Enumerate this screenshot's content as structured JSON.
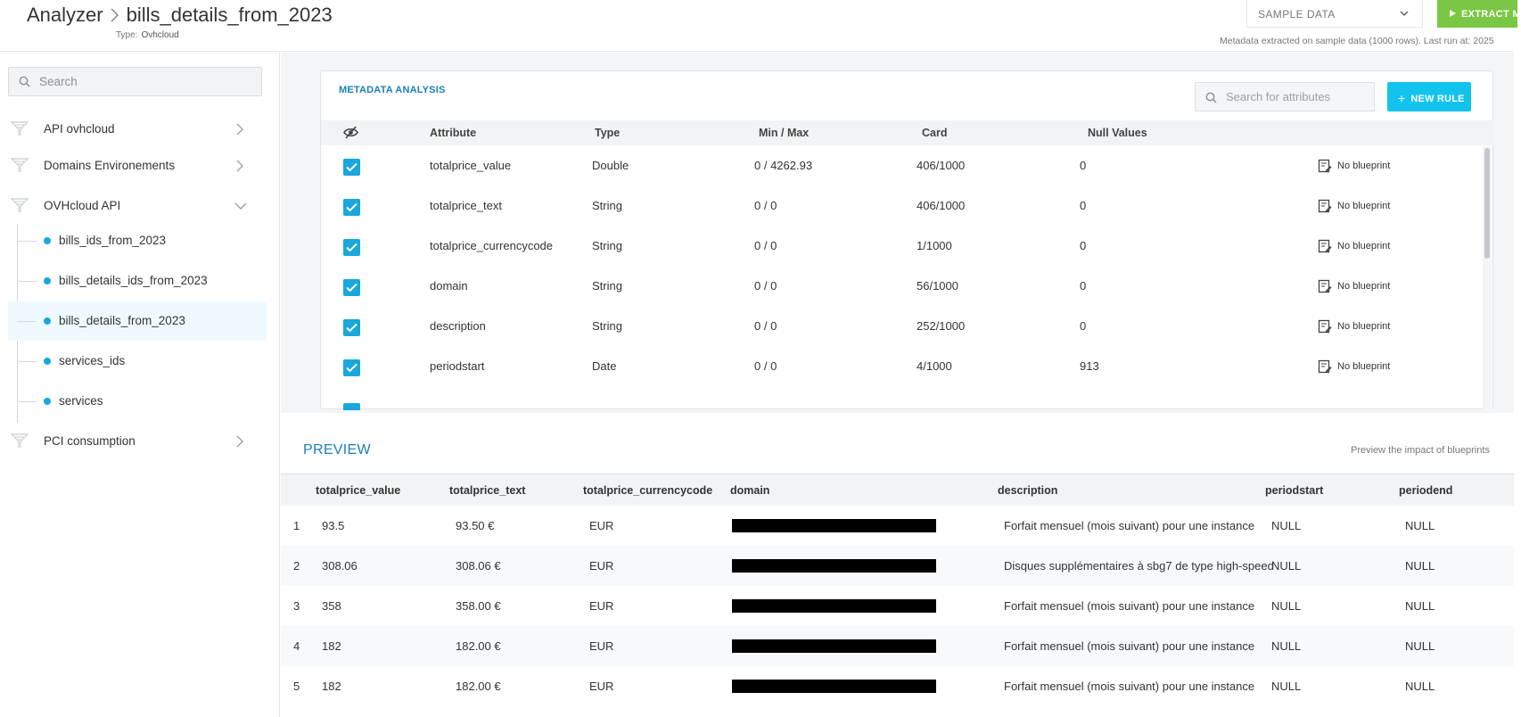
{
  "header": {
    "breadcrumb_root": "Analyzer",
    "breadcrumb_current": "bills_details_from_2023",
    "type_label": "Type:",
    "type_value": "Ovhcloud",
    "sample_select": "SAMPLE DATA",
    "extract_button": "EXTRACT M",
    "meta_info": "Metadata extracted on sample data (1000 rows).  Last run at:  2025"
  },
  "sidebar": {
    "search_placeholder": "Search",
    "groups": [
      {
        "label": "API ovhcloud",
        "expanded": false
      },
      {
        "label": "Domains Environements",
        "expanded": false
      },
      {
        "label": "OVHcloud API",
        "expanded": true
      },
      {
        "label": "PCI consumption",
        "expanded": false
      }
    ],
    "children": [
      {
        "label": "bills_ids_from_2023",
        "active": false
      },
      {
        "label": "bills_details_ids_from_2023",
        "active": false
      },
      {
        "label": "bills_details_from_2023",
        "active": true
      },
      {
        "label": "services_ids",
        "active": false
      },
      {
        "label": "services",
        "active": false
      }
    ]
  },
  "metadata": {
    "title": "METADATA ANALYSIS",
    "search_placeholder": "Search for attributes",
    "new_rule": "NEW RULE",
    "columns": {
      "attribute": "Attribute",
      "type": "Type",
      "minmax": "Min / Max",
      "card": "Card",
      "nulls": "Null Values"
    },
    "rows": [
      {
        "attribute": "totalprice_value",
        "type": "Double",
        "minmax": "0 / 4262.93",
        "card": "406/1000",
        "nulls": "0",
        "blueprint": "No blueprint",
        "checked": true
      },
      {
        "attribute": "totalprice_text",
        "type": "String",
        "minmax": "0 / 0",
        "card": "406/1000",
        "nulls": "0",
        "blueprint": "No blueprint",
        "checked": true
      },
      {
        "attribute": "totalprice_currencycode",
        "type": "String",
        "minmax": "0 / 0",
        "card": "1/1000",
        "nulls": "0",
        "blueprint": "No blueprint",
        "checked": true
      },
      {
        "attribute": "domain",
        "type": "String",
        "minmax": "0 / 0",
        "card": "56/1000",
        "nulls": "0",
        "blueprint": "No blueprint",
        "checked": true
      },
      {
        "attribute": "description",
        "type": "String",
        "minmax": "0 / 0",
        "card": "252/1000",
        "nulls": "0",
        "blueprint": "No blueprint",
        "checked": true
      },
      {
        "attribute": "periodstart",
        "type": "Date",
        "minmax": "0 / 0",
        "card": "4/1000",
        "nulls": "913",
        "blueprint": "No blueprint",
        "checked": true
      }
    ]
  },
  "preview": {
    "title": "PREVIEW",
    "impact_label": "Preview the impact of blueprints",
    "columns": {
      "c1": "totalprice_value",
      "c2": "totalprice_text",
      "c3": "totalprice_currencycode",
      "c4": "domain",
      "c5": "description",
      "c6": "periodstart",
      "c7": "periodend"
    },
    "rows": [
      {
        "n": "1",
        "value": "93.5",
        "text": "93.50 €",
        "currency": "EUR",
        "description": "Forfait mensuel (mois suivant) pour une instance",
        "periodstart": "NULL",
        "periodend": "NULL"
      },
      {
        "n": "2",
        "value": "308.06",
        "text": "308.06 €",
        "currency": "EUR",
        "description": "Disques supplémentaires à sbg7 de type high-speed",
        "periodstart": "NULL",
        "periodend": "NULL"
      },
      {
        "n": "3",
        "value": "358",
        "text": "358.00 €",
        "currency": "EUR",
        "description": "Forfait mensuel (mois suivant) pour une instance",
        "periodstart": "NULL",
        "periodend": "NULL"
      },
      {
        "n": "4",
        "value": "182",
        "text": "182.00 €",
        "currency": "EUR",
        "description": "Forfait mensuel (mois suivant) pour une instance",
        "periodstart": "NULL",
        "periodend": "NULL"
      },
      {
        "n": "5",
        "value": "182",
        "text": "182.00 €",
        "currency": "EUR",
        "description": "Forfait mensuel (mois suivant) pour une instance",
        "periodstart": "NULL",
        "periodend": "NULL"
      }
    ]
  }
}
